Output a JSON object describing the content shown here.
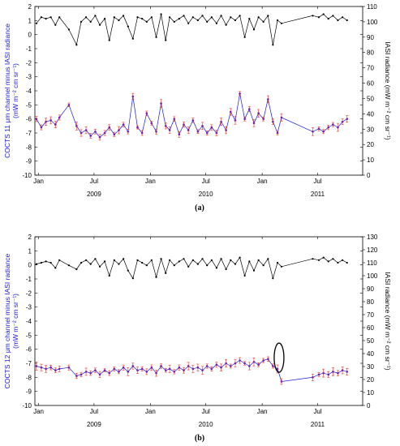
{
  "chart_data": [
    {
      "type": "line",
      "panel_label": "(a)",
      "ylabel_left": "COCTS 11 μm channel minus IASI radiance (mW m⁻² cm sr⁻¹)",
      "ylabel_right": "IASI radiance (mW m⁻² cm sr⁻¹)",
      "ylim_left": [
        -10,
        2
      ],
      "ylim_right": [
        0,
        110
      ],
      "yticks_left": [
        "-10",
        "-9",
        "-8",
        "-7",
        "-6",
        "-5",
        "-4",
        "-3",
        "-2",
        "-1",
        "0",
        "1",
        "2"
      ],
      "yticks_right": [
        "0",
        "10",
        "20",
        "30",
        "40",
        "50",
        "60",
        "70",
        "80",
        "90",
        "100",
        "110"
      ],
      "x_month_ticks": [
        "Jan",
        "Jul",
        "Jan",
        "Jul",
        "Jan",
        "Jul"
      ],
      "x_year_labels": [
        "2009",
        "2010",
        "2011"
      ],
      "series": [
        {
          "color": "#000000",
          "axis": "right",
          "x": [
            "2008-12-25",
            "2009-01-10",
            "2009-01-25",
            "2009-02-10",
            "2009-02-25",
            "2009-03-10",
            "2009-04-10",
            "2009-05-05",
            "2009-05-20",
            "2009-06-05",
            "2009-06-20",
            "2009-07-05",
            "2009-07-20",
            "2009-08-05",
            "2009-08-20",
            "2009-09-05",
            "2009-09-20",
            "2009-10-05",
            "2009-10-20",
            "2009-11-05",
            "2009-11-20",
            "2009-12-05",
            "2009-12-20",
            "2010-01-05",
            "2010-01-20",
            "2010-02-05",
            "2010-02-20",
            "2010-03-05",
            "2010-03-20",
            "2010-04-05",
            "2010-04-20",
            "2010-05-05",
            "2010-05-20",
            "2010-06-05",
            "2010-06-20",
            "2010-07-05",
            "2010-07-20",
            "2010-08-05",
            "2010-08-20",
            "2010-09-05",
            "2010-09-20",
            "2010-10-05",
            "2010-10-20",
            "2010-11-05",
            "2010-11-20",
            "2010-12-05",
            "2010-12-20",
            "2011-01-05",
            "2011-01-20",
            "2011-02-05",
            "2011-02-20",
            "2011-03-05",
            "2011-06-15",
            "2011-07-05",
            "2011-07-20",
            "2011-08-05",
            "2011-08-20",
            "2011-09-05",
            "2011-09-20",
            "2011-10-05"
          ],
          "values": [
            99,
            103,
            102,
            103,
            98,
            103,
            95,
            85,
            100,
            103,
            100,
            104,
            98,
            102,
            88,
            103,
            101,
            104,
            97,
            89,
            103,
            102,
            100,
            103,
            90,
            105,
            88,
            103,
            100,
            102,
            104,
            99,
            103,
            101,
            104,
            100,
            103,
            99,
            104,
            98,
            103,
            101,
            104,
            90,
            102,
            95,
            103,
            100,
            104,
            85,
            101,
            99,
            104,
            103,
            105,
            102,
            104,
            101,
            103,
            101
          ]
        },
        {
          "color": "#1a1adb",
          "axis": "left",
          "x": [
            "2008-12-25",
            "2009-01-10",
            "2009-01-25",
            "2009-02-10",
            "2009-02-25",
            "2009-03-10",
            "2009-04-10",
            "2009-05-05",
            "2009-05-20",
            "2009-06-05",
            "2009-06-20",
            "2009-07-05",
            "2009-07-20",
            "2009-08-05",
            "2009-08-20",
            "2009-09-05",
            "2009-09-20",
            "2009-10-05",
            "2009-10-20",
            "2009-11-05",
            "2009-11-20",
            "2009-12-05",
            "2009-12-20",
            "2010-01-05",
            "2010-01-20",
            "2010-02-05",
            "2010-02-20",
            "2010-03-05",
            "2010-03-20",
            "2010-04-05",
            "2010-04-20",
            "2010-05-05",
            "2010-05-20",
            "2010-06-05",
            "2010-06-20",
            "2010-07-05",
            "2010-07-20",
            "2010-08-05",
            "2010-08-20",
            "2010-09-05",
            "2010-09-20",
            "2010-10-05",
            "2010-10-20",
            "2010-11-05",
            "2010-11-20",
            "2010-12-05",
            "2010-12-20",
            "2011-01-05",
            "2011-01-20",
            "2011-02-05",
            "2011-02-20",
            "2011-03-05",
            "2011-06-15",
            "2011-07-05",
            "2011-07-20",
            "2011-08-05",
            "2011-08-20",
            "2011-09-05",
            "2011-09-20",
            "2011-10-05"
          ],
          "values": [
            -6.0,
            -6.6,
            -6.2,
            -6.1,
            -6.4,
            -5.9,
            -5.0,
            -6.5,
            -7.0,
            -6.8,
            -7.2,
            -6.9,
            -7.3,
            -7.0,
            -6.6,
            -7.1,
            -6.8,
            -6.4,
            -6.9,
            -4.4,
            -6.6,
            -7.0,
            -5.6,
            -6.3,
            -6.9,
            -4.9,
            -6.5,
            -6.8,
            -6.0,
            -7.1,
            -6.4,
            -6.8,
            -6.1,
            -6.9,
            -6.5,
            -7.0,
            -6.6,
            -7.0,
            -6.2,
            -6.8,
            -5.5,
            -6.1,
            -4.2,
            -6.0,
            -5.3,
            -6.3,
            -5.6,
            -6.0,
            -4.6,
            -6.2,
            -7.0,
            -5.9,
            -6.9,
            -6.7,
            -6.9,
            -6.6,
            -6.4,
            -6.6,
            -6.2,
            -6.0
          ]
        }
      ]
    },
    {
      "type": "line",
      "panel_label": "(b)",
      "ylabel_left": "COCTS 12 μm channel minus IASI radiance (mW m⁻² cm sr⁻¹)",
      "ylabel_right": "IASI radiance (mW m⁻² cm sr⁻¹)",
      "ylim_left": [
        -10,
        2
      ],
      "ylim_right": [
        0,
        130
      ],
      "yticks_left": [
        "-10",
        "-9",
        "-8",
        "-7",
        "-6",
        "-5",
        "-4",
        "-3",
        "-2",
        "-1",
        "0",
        "1",
        "2"
      ],
      "yticks_right": [
        "0",
        "10",
        "20",
        "30",
        "40",
        "50",
        "60",
        "70",
        "80",
        "90",
        "100",
        "110",
        "120",
        "130"
      ],
      "x_month_ticks": [
        "Jan",
        "Jul",
        "Jan",
        "Jul",
        "Jan",
        "Jul"
      ],
      "x_year_labels": [
        "2009",
        "2010",
        "2011"
      ],
      "annotation": "ellipse around 2011-03 data points",
      "series": [
        {
          "color": "#000000",
          "axis": "right",
          "x": [
            "2008-12-25",
            "2009-01-10",
            "2009-01-25",
            "2009-02-10",
            "2009-02-25",
            "2009-03-10",
            "2009-04-10",
            "2009-05-05",
            "2009-05-20",
            "2009-06-05",
            "2009-06-20",
            "2009-07-05",
            "2009-07-20",
            "2009-08-05",
            "2009-08-20",
            "2009-09-05",
            "2009-09-20",
            "2009-10-05",
            "2009-10-20",
            "2009-11-05",
            "2009-11-20",
            "2009-12-05",
            "2009-12-20",
            "2010-01-05",
            "2010-01-20",
            "2010-02-05",
            "2010-02-20",
            "2010-03-05",
            "2010-03-20",
            "2010-04-05",
            "2010-04-20",
            "2010-05-05",
            "2010-05-20",
            "2010-06-05",
            "2010-06-20",
            "2010-07-05",
            "2010-07-20",
            "2010-08-05",
            "2010-08-20",
            "2010-09-05",
            "2010-09-20",
            "2010-10-05",
            "2010-10-20",
            "2010-11-05",
            "2010-11-20",
            "2010-12-05",
            "2010-12-20",
            "2011-01-05",
            "2011-01-20",
            "2011-02-05",
            "2011-02-20",
            "2011-03-05",
            "2011-06-15",
            "2011-07-05",
            "2011-07-20",
            "2011-08-05",
            "2011-08-20",
            "2011-09-05",
            "2011-09-20",
            "2011-10-05"
          ],
          "values": [
            109,
            110,
            111,
            110,
            106,
            112,
            108,
            105,
            110,
            112,
            109,
            113,
            107,
            111,
            100,
            112,
            109,
            113,
            104,
            98,
            112,
            110,
            108,
            112,
            99,
            113,
            102,
            112,
            108,
            111,
            113,
            107,
            112,
            109,
            113,
            108,
            112,
            106,
            113,
            105,
            112,
            109,
            114,
            100,
            111,
            104,
            112,
            108,
            113,
            98,
            110,
            107,
            113,
            112,
            114,
            111,
            113,
            110,
            112,
            110
          ]
        },
        {
          "color": "#1a1adb",
          "axis": "left",
          "x": [
            "2008-12-25",
            "2009-01-10",
            "2009-01-25",
            "2009-02-10",
            "2009-02-25",
            "2009-03-10",
            "2009-04-10",
            "2009-05-05",
            "2009-05-20",
            "2009-06-05",
            "2009-06-20",
            "2009-07-05",
            "2009-07-20",
            "2009-08-05",
            "2009-08-20",
            "2009-09-05",
            "2009-09-20",
            "2009-10-05",
            "2009-10-20",
            "2009-11-05",
            "2009-11-20",
            "2009-12-05",
            "2009-12-20",
            "2010-01-05",
            "2010-01-20",
            "2010-02-05",
            "2010-02-20",
            "2010-03-05",
            "2010-03-20",
            "2010-04-05",
            "2010-04-20",
            "2010-05-05",
            "2010-05-20",
            "2010-06-05",
            "2010-06-20",
            "2010-07-05",
            "2010-07-20",
            "2010-08-05",
            "2010-08-20",
            "2010-09-05",
            "2010-09-20",
            "2010-10-05",
            "2010-10-20",
            "2010-11-05",
            "2010-11-20",
            "2010-12-05",
            "2010-12-20",
            "2011-01-05",
            "2011-01-20",
            "2011-02-05",
            "2011-02-20",
            "2011-03-05",
            "2011-06-15",
            "2011-07-05",
            "2011-07-20",
            "2011-08-05",
            "2011-08-20",
            "2011-09-05",
            "2011-09-20",
            "2011-10-05"
          ],
          "values": [
            -7.2,
            -7.3,
            -7.4,
            -7.3,
            -7.5,
            -7.4,
            -7.3,
            -7.9,
            -7.8,
            -7.6,
            -7.7,
            -7.5,
            -7.8,
            -7.5,
            -7.7,
            -7.4,
            -7.6,
            -7.3,
            -7.6,
            -7.2,
            -7.5,
            -7.4,
            -7.6,
            -7.3,
            -7.7,
            -7.2,
            -7.5,
            -7.4,
            -7.6,
            -7.3,
            -7.5,
            -7.2,
            -7.4,
            -7.3,
            -7.5,
            -7.2,
            -7.4,
            -7.1,
            -7.3,
            -7.0,
            -7.2,
            -7.0,
            -6.8,
            -7.0,
            -7.2,
            -6.9,
            -7.1,
            -6.8,
            -6.7,
            -7.2,
            -7.4,
            -8.3,
            -8.0,
            -7.8,
            -7.7,
            -7.8,
            -7.6,
            -7.7,
            -7.5,
            -7.6
          ]
        }
      ]
    }
  ]
}
